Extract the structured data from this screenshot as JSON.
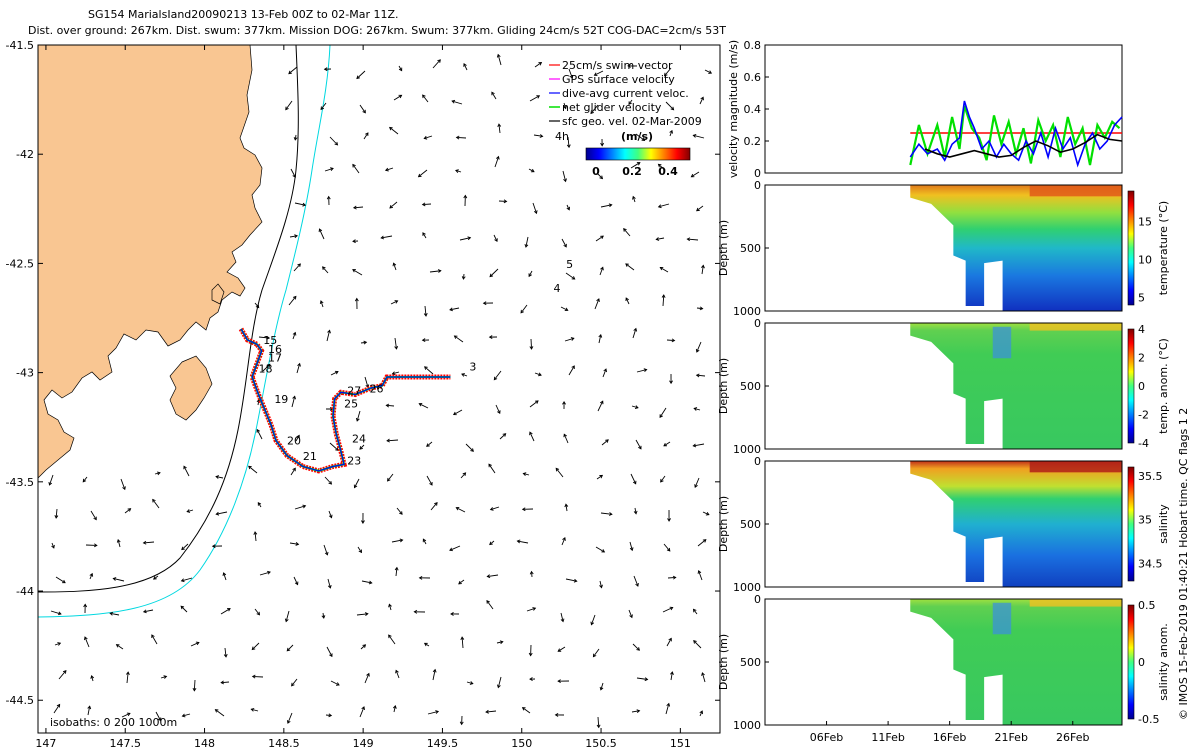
{
  "title": {
    "line1": "SG154 MarialsIand20090213 13-Feb 00Z to 02-Mar 11Z.",
    "line2": "Dist. over ground: 267km. Dist. swum: 377km. Mission DOG: 267km. Swum: 377km. Gliding 24cm/s 52T COG-DAC=2cm/s 53T"
  },
  "credit": "© IMOS 15-Feb-2019 01:40:21 Hobart time. QC flags 1  2",
  "colors": {
    "land": "#f9c692",
    "swim_vector": "#ff0000",
    "gps_velocity": "#ff00ff",
    "dac": "#0000ff",
    "net_velocity": "#00e000",
    "geo_vel": "#000000",
    "isobath_1000": "#00d8e0"
  },
  "chart_data": [
    {
      "id": "track_map",
      "type": "scatter",
      "xlabel": "",
      "ylabel": "",
      "xlim": [
        146.95,
        151.25
      ],
      "ylim": [
        -44.65,
        -41.5
      ],
      "x_ticks": [
        147,
        147.5,
        148,
        148.5,
        149,
        149.5,
        150,
        150.5,
        151
      ],
      "y_ticks": [
        -41.5,
        -42,
        -42.5,
        -43,
        -43.5,
        -44,
        -44.5
      ],
      "x_tick_labels": [
        "147",
        "147.5",
        "148",
        "148.5",
        "149",
        "149.5",
        "150",
        "150.5",
        "151"
      ],
      "y_tick_labels": [
        "-41.5",
        "-42",
        "-42.5",
        "-43",
        "-43.5",
        "-44",
        "-44.5"
      ],
      "legend": [
        "25cm/s swim vector",
        "GPS surface velocity",
        "dive-avg current veloc.",
        "net glider velocity",
        "sfc geo. vel. 02-Mar-2009"
      ],
      "legend_marker_label": "4h",
      "colorbar_title": "(m/s)",
      "colorbar_ticks": [
        "0",
        "0.2",
        "0.4"
      ],
      "isobaths_label": "isobaths: 0   200  1000m",
      "track": [
        [
          148.23,
          -42.8
        ],
        [
          148.27,
          -42.85
        ],
        [
          148.33,
          -42.87
        ],
        [
          148.36,
          -42.9
        ],
        [
          148.33,
          -42.96
        ],
        [
          148.3,
          -43.02
        ],
        [
          148.34,
          -43.1
        ],
        [
          148.38,
          -43.17
        ],
        [
          148.42,
          -43.24
        ],
        [
          148.45,
          -43.31
        ],
        [
          148.52,
          -43.38
        ],
        [
          148.62,
          -43.43
        ],
        [
          148.72,
          -43.45
        ],
        [
          148.81,
          -43.43
        ],
        [
          148.88,
          -43.42
        ],
        [
          148.86,
          -43.36
        ],
        [
          148.83,
          -43.28
        ],
        [
          148.81,
          -43.2
        ],
        [
          148.82,
          -43.12
        ],
        [
          148.86,
          -43.09
        ],
        [
          148.95,
          -43.1
        ],
        [
          149.05,
          -43.07
        ],
        [
          149.12,
          -43.06
        ],
        [
          149.15,
          -43.02
        ],
        [
          149.25,
          -43.02
        ],
        [
          149.35,
          -43.02
        ],
        [
          149.45,
          -43.02
        ],
        [
          149.55,
          -43.02
        ]
      ],
      "track_labels": [
        {
          "text": "15",
          "lon": 148.37,
          "lat": -42.87
        },
        {
          "text": "16",
          "lon": 148.4,
          "lat": -42.91
        },
        {
          "text": "17",
          "lon": 148.4,
          "lat": -42.95
        },
        {
          "text": "18",
          "lon": 148.34,
          "lat": -43.0
        },
        {
          "text": "19",
          "lon": 148.44,
          "lat": -43.14
        },
        {
          "text": "20",
          "lon": 148.52,
          "lat": -43.33
        },
        {
          "text": "21",
          "lon": 148.62,
          "lat": -43.4
        },
        {
          "text": "23",
          "lon": 148.9,
          "lat": -43.42
        },
        {
          "text": "24",
          "lon": 148.93,
          "lat": -43.32
        },
        {
          "text": "25",
          "lon": 148.88,
          "lat": -43.16
        },
        {
          "text": "26",
          "lon": 149.04,
          "lat": -43.09
        },
        {
          "text": "27",
          "lon": 148.9,
          "lat": -43.1
        },
        {
          "text": "3",
          "lon": 149.67,
          "lat": -42.99
        },
        {
          "text": "4",
          "lon": 150.2,
          "lat": -42.63
        },
        {
          "text": "5",
          "lon": 150.28,
          "lat": -42.52
        }
      ]
    },
    {
      "id": "velocity_magnitude",
      "type": "line",
      "ylabel": "velocity magnitude (m/s)",
      "ylim": [
        0,
        0.8
      ],
      "y_ticks": [
        "0",
        "0.2",
        "0.4",
        "0.6",
        "0.8"
      ],
      "x_range_days": [
        0,
        29
      ],
      "series": [
        {
          "name": "25cm/s swim vector",
          "color": "#ff0000",
          "x": [
            11.8,
            29
          ],
          "values": [
            0.25,
            0.25
          ]
        },
        {
          "name": "net glider velocity",
          "color": "#00e000",
          "x": [
            11.8,
            12.5,
            13.2,
            14,
            14.6,
            15.2,
            15.8,
            16.2,
            16.8,
            17.4,
            18.0,
            18.6,
            19.2,
            19.8,
            20.4,
            21.0,
            21.6,
            22.2,
            22.8,
            23.4,
            24.0,
            24.6,
            25.2,
            25.8,
            26.4,
            27.0,
            27.6,
            28.2,
            28.8
          ],
          "values": [
            0.05,
            0.3,
            0.12,
            0.3,
            0.1,
            0.35,
            0.15,
            0.42,
            0.28,
            0.22,
            0.08,
            0.36,
            0.18,
            0.32,
            0.12,
            0.28,
            0.06,
            0.33,
            0.2,
            0.3,
            0.1,
            0.35,
            0.18,
            0.28,
            0.05,
            0.3,
            0.22,
            0.32,
            0.28
          ]
        },
        {
          "name": "dive-avg current veloc.",
          "color": "#0000ff",
          "x": [
            11.8,
            12.5,
            13.2,
            14,
            14.6,
            15.2,
            15.8,
            16.2,
            16.6,
            17.0,
            17.6,
            18.2,
            18.8,
            19.4,
            20.0,
            20.6,
            21.2,
            21.8,
            22.4,
            23.0,
            23.6,
            24.2,
            24.8,
            25.4,
            26.0,
            26.6,
            27.2,
            27.8,
            28.4,
            29
          ],
          "values": [
            0.1,
            0.18,
            0.12,
            0.15,
            0.08,
            0.18,
            0.22,
            0.45,
            0.35,
            0.28,
            0.15,
            0.2,
            0.1,
            0.18,
            0.12,
            0.08,
            0.2,
            0.12,
            0.25,
            0.1,
            0.28,
            0.15,
            0.22,
            0.05,
            0.18,
            0.25,
            0.15,
            0.2,
            0.3,
            0.35
          ]
        },
        {
          "name": "sfc geo. vel.",
          "color": "#000000",
          "x": [
            13,
            14,
            15,
            16,
            17,
            18,
            19,
            20,
            21,
            22,
            23,
            24,
            25,
            26,
            27,
            28,
            29
          ],
          "values": [
            0.15,
            0.12,
            0.1,
            0.12,
            0.14,
            0.12,
            0.1,
            0.11,
            0.16,
            0.2,
            0.17,
            0.13,
            0.15,
            0.19,
            0.24,
            0.21,
            0.2
          ]
        }
      ]
    },
    {
      "id": "temperature",
      "type": "heatmap",
      "ylabel": "Depth (m)",
      "ylim": [
        0,
        1000
      ],
      "y_ticks": [
        "0",
        "500",
        "1000"
      ],
      "colorbar_label": "temperature (°C)",
      "colorbar_ticks": [
        "5",
        "10",
        "15"
      ],
      "crange": [
        4,
        19
      ]
    },
    {
      "id": "temp_anomaly",
      "type": "heatmap",
      "ylabel": "Depth (m)",
      "ylim": [
        0,
        1000
      ],
      "y_ticks": [
        "0",
        "500",
        "1000"
      ],
      "colorbar_label": "temp. anom. (°C)",
      "colorbar_ticks": [
        "-4",
        "-2",
        "0",
        "2",
        "4"
      ],
      "crange": [
        -4,
        4
      ]
    },
    {
      "id": "salinity",
      "type": "heatmap",
      "ylabel": "Depth (m)",
      "ylim": [
        0,
        1000
      ],
      "y_ticks": [
        "0",
        "500",
        "1000"
      ],
      "colorbar_label": "salinity",
      "colorbar_ticks": [
        "34.5",
        "35",
        "35.5"
      ],
      "crange": [
        34.3,
        35.6
      ]
    },
    {
      "id": "salinity_anomaly",
      "type": "heatmap",
      "ylabel": "Depth (m)",
      "ylim": [
        0,
        1000
      ],
      "y_ticks": [
        "0",
        "500",
        "1000"
      ],
      "colorbar_label": "salinity anom.",
      "colorbar_ticks": [
        "-0.5",
        "0",
        "0.5"
      ],
      "crange": [
        -0.5,
        0.5
      ]
    },
    {
      "id": "time_axis",
      "type": "table",
      "x_tick_labels": [
        "06Feb",
        "11Feb",
        "16Feb",
        "21Feb",
        "26Feb"
      ],
      "x_tick_days": [
        5,
        10,
        15,
        20,
        25
      ]
    }
  ]
}
